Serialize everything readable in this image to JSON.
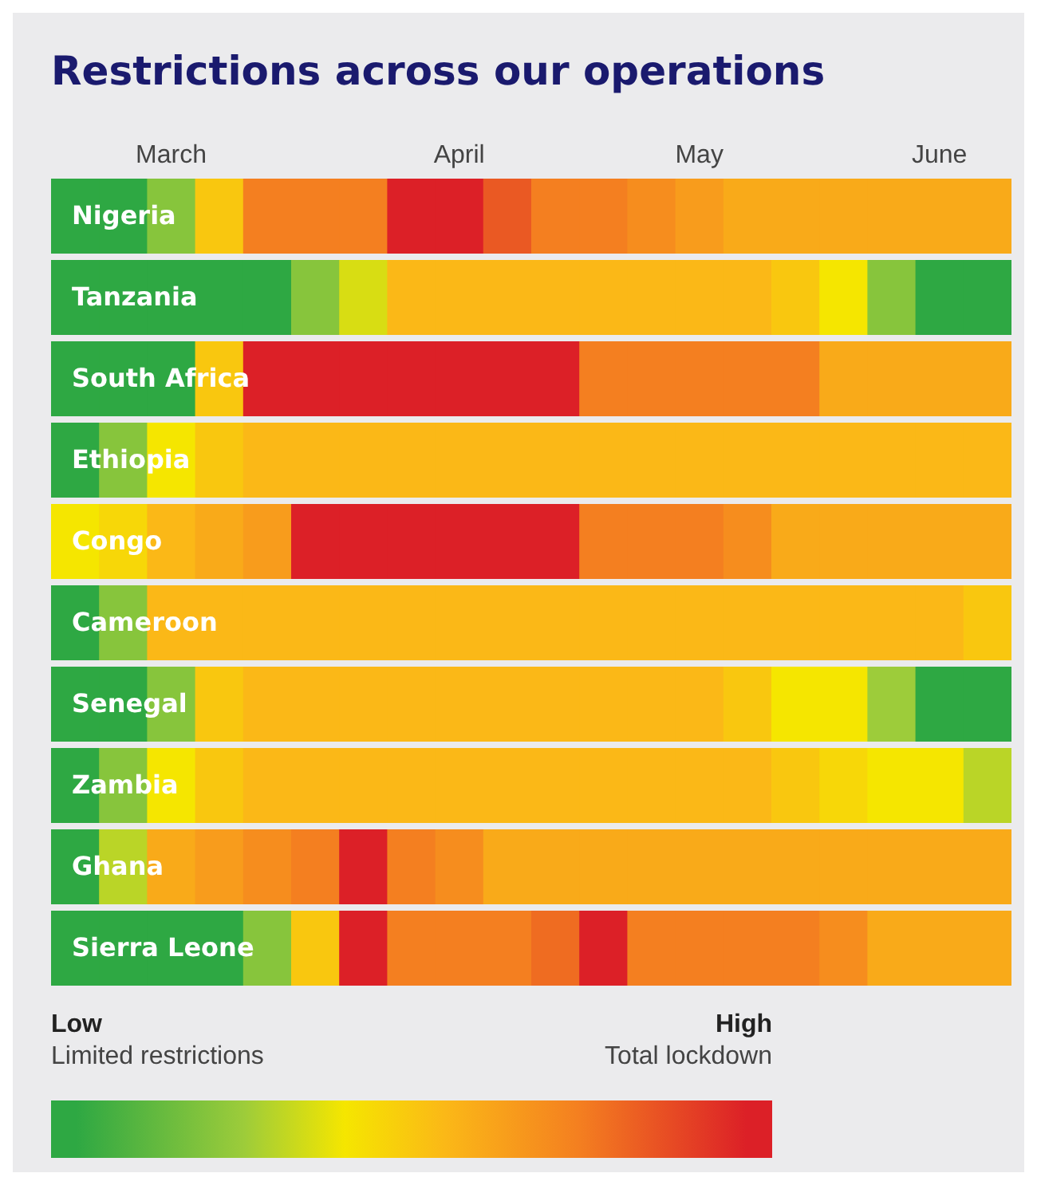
{
  "chart_data": {
    "type": "heatmap",
    "title": "Restrictions across our operations",
    "categories": [
      null,
      null,
      "March",
      null,
      null,
      null,
      null,
      null,
      "April",
      null,
      null,
      null,
      null,
      "May",
      null,
      null,
      null,
      null,
      "June",
      null
    ],
    "y_categories": [
      "Nigeria",
      "Tanzania",
      "South Africa",
      "Ethiopia",
      "Congo",
      "Cameroon",
      "Senegal",
      "Zambia",
      "Ghana",
      "Sierra Leone"
    ],
    "cells": [
      [
        0,
        0,
        0.2,
        0.5,
        0.75,
        0.75,
        0.75,
        1,
        1,
        0.85,
        0.75,
        0.75,
        0.7,
        0.65,
        0.6,
        0.6,
        0.6,
        0.6,
        0.6,
        0.6
      ],
      [
        0,
        0,
        0,
        0,
        0,
        0.2,
        0.35,
        0.55,
        0.55,
        0.55,
        0.55,
        0.55,
        0.55,
        0.55,
        0.55,
        0.5,
        0.4,
        0.2,
        0,
        0
      ],
      [
        0,
        0,
        0,
        0.5,
        1,
        1,
        1,
        1,
        1,
        1,
        1,
        0.75,
        0.75,
        0.75,
        0.75,
        0.75,
        0.6,
        0.6,
        0.6,
        0.6
      ],
      [
        0,
        0.2,
        0.4,
        0.5,
        0.55,
        0.55,
        0.55,
        0.55,
        0.55,
        0.55,
        0.55,
        0.55,
        0.55,
        0.55,
        0.55,
        0.55,
        0.55,
        0.55,
        0.55,
        0.55
      ],
      [
        0.4,
        0.45,
        0.55,
        0.6,
        0.65,
        1,
        1,
        1,
        1,
        1,
        1,
        0.75,
        0.75,
        0.75,
        0.7,
        0.6,
        0.6,
        0.6,
        0.6,
        0.6
      ],
      [
        0,
        0.2,
        0.55,
        0.55,
        0.55,
        0.55,
        0.55,
        0.55,
        0.55,
        0.55,
        0.55,
        0.55,
        0.55,
        0.55,
        0.55,
        0.55,
        0.55,
        0.55,
        0.55,
        0.5
      ],
      [
        0,
        0,
        0.2,
        0.5,
        0.55,
        0.55,
        0.55,
        0.55,
        0.55,
        0.55,
        0.55,
        0.55,
        0.55,
        0.55,
        0.5,
        0.4,
        0.4,
        0.25,
        0,
        0
      ],
      [
        0,
        0.2,
        0.4,
        0.5,
        0.55,
        0.55,
        0.55,
        0.55,
        0.55,
        0.55,
        0.55,
        0.55,
        0.55,
        0.55,
        0.55,
        0.5,
        0.45,
        0.4,
        0.4,
        0.3
      ],
      [
        0,
        0.3,
        0.6,
        0.65,
        0.7,
        0.75,
        1,
        0.75,
        0.7,
        0.6,
        0.6,
        0.6,
        0.6,
        0.6,
        0.6,
        0.6,
        0.6,
        0.6,
        0.6,
        0.6
      ],
      [
        0,
        0,
        0,
        0,
        0.2,
        0.5,
        1,
        0.75,
        0.75,
        0.75,
        0.8,
        1,
        0.75,
        0.75,
        0.75,
        0.75,
        0.7,
        0.6,
        0.6,
        0.6
      ]
    ],
    "clim": [
      0,
      1
    ],
    "cticks": [
      {
        "value": 0,
        "label": "Low"
      },
      {
        "value": 1,
        "label": "High"
      }
    ],
    "annotations": [
      "Limited restrictions",
      "Total lockdown"
    ]
  }
}
